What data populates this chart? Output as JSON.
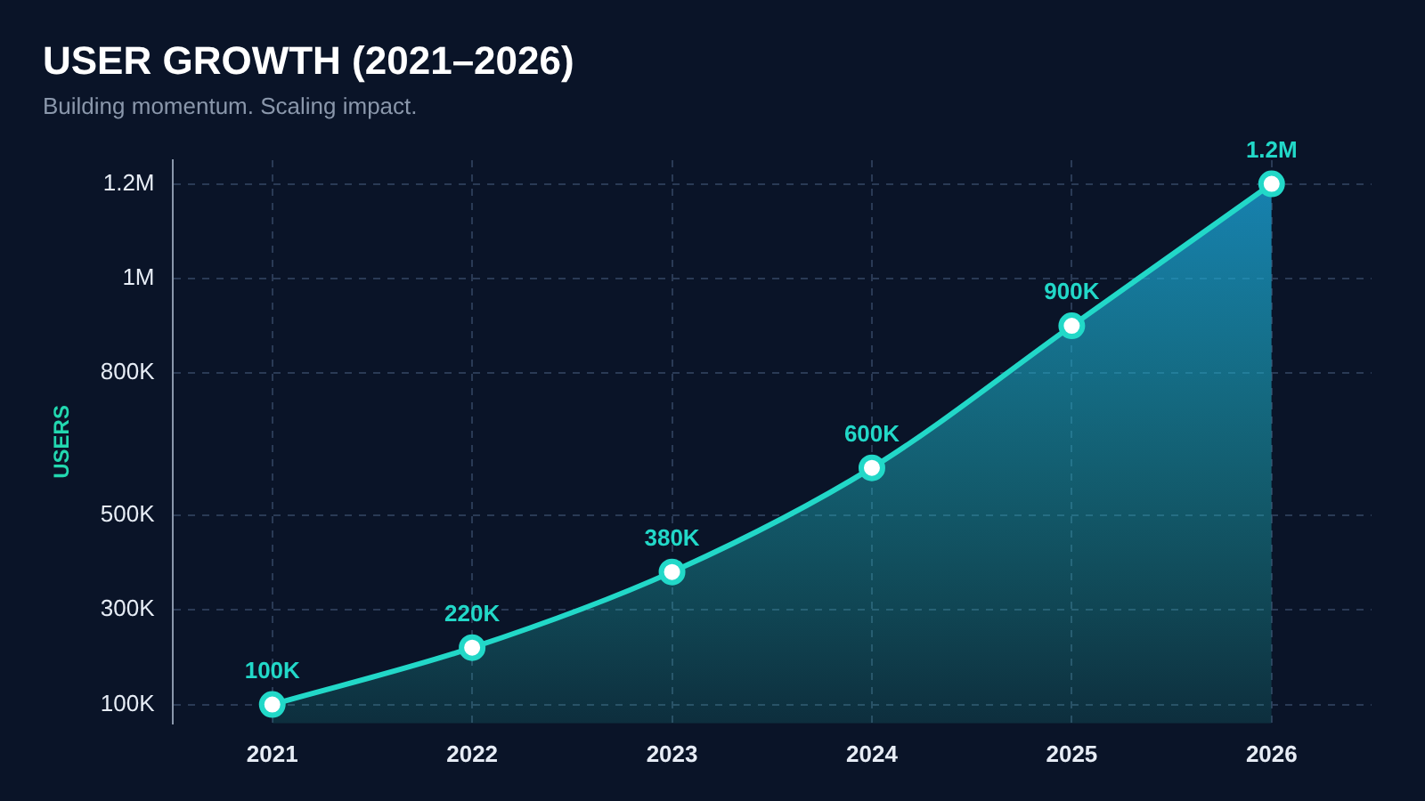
{
  "chart_data": {
    "type": "area",
    "title": "USER GROWTH (2021–2026)",
    "subtitle": "Building momentum. Scaling impact.",
    "ylabel": "USERS",
    "categories": [
      "2021",
      "2022",
      "2023",
      "2024",
      "2025",
      "2026"
    ],
    "series": [
      {
        "color": "#22d8c8",
        "values": [
          100000,
          220000,
          380000,
          600000,
          900000,
          1200000
        ],
        "value_labels": [
          "100K",
          "220K",
          "380K",
          "600K",
          "900K",
          "1.2M"
        ]
      }
    ],
    "ylim": [
      60000,
      1250000
    ],
    "yticks": [
      {
        "value": 100000,
        "label": "100K"
      },
      {
        "value": 300000,
        "label": "300K"
      },
      {
        "value": 500000,
        "label": "500K"
      },
      {
        "value": 800000,
        "label": "800K"
      },
      {
        "value": 1000000,
        "label": "1M"
      },
      {
        "value": 1200000,
        "label": "1.2M"
      }
    ],
    "grid": true,
    "legend": false,
    "marker": "circle",
    "line_style": "solid"
  }
}
